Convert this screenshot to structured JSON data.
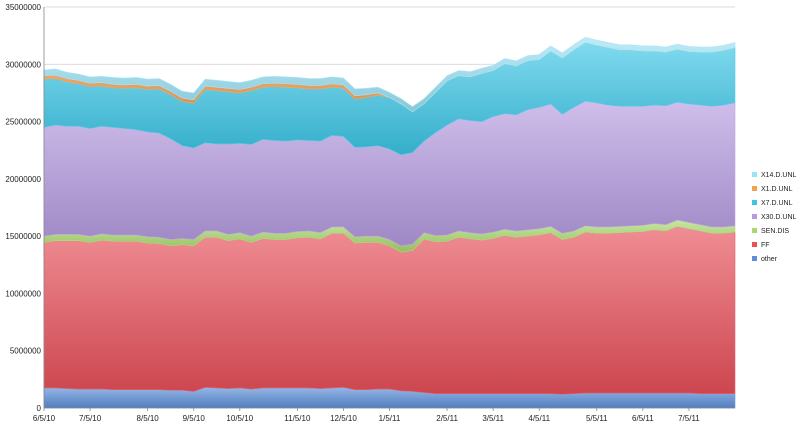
{
  "chart_data": {
    "type": "area",
    "stacked": true,
    "grid": true,
    "legend_position": "right",
    "title": "",
    "xlabel": "",
    "ylabel": "",
    "ylim": [
      0,
      35000000
    ],
    "y_ticks": [
      0,
      5000000,
      10000000,
      15000000,
      20000000,
      25000000,
      30000000,
      35000000
    ],
    "y_tick_labels": [
      "0",
      "5000000",
      "10000000",
      "15000000",
      "20000000",
      "25000000",
      "30000000",
      "35000000"
    ],
    "x_ticks": [
      {
        "index": 0,
        "label": "6/5/10"
      },
      {
        "index": 4,
        "label": "7/5/10"
      },
      {
        "index": 9,
        "label": "8/5/10"
      },
      {
        "index": 13,
        "label": "9/5/10"
      },
      {
        "index": 17,
        "label": "10/5/10"
      },
      {
        "index": 22,
        "label": "11/5/10"
      },
      {
        "index": 26,
        "label": "12/5/10"
      },
      {
        "index": 30,
        "label": "1/5/11"
      },
      {
        "index": 35,
        "label": "2/5/11"
      },
      {
        "index": 39,
        "label": "3/5/11"
      },
      {
        "index": 43,
        "label": "4/5/11"
      },
      {
        "index": 48,
        "label": "5/5/11"
      },
      {
        "index": 52,
        "label": "6/5/11"
      },
      {
        "index": 56,
        "label": "7/5/11"
      }
    ],
    "series": [
      {
        "name": "other",
        "color": "#5b8fd9",
        "values": [
          1750000,
          1750000,
          1700000,
          1650000,
          1650000,
          1650000,
          1600000,
          1600000,
          1600000,
          1600000,
          1600000,
          1550000,
          1550000,
          1450000,
          1800000,
          1750000,
          1700000,
          1750000,
          1650000,
          1750000,
          1750000,
          1750000,
          1750000,
          1750000,
          1700000,
          1750000,
          1800000,
          1600000,
          1600000,
          1650000,
          1650000,
          1500000,
          1450000,
          1350000,
          1250000,
          1250000,
          1250000,
          1250000,
          1250000,
          1250000,
          1250000,
          1250000,
          1250000,
          1250000,
          1250000,
          1200000,
          1250000,
          1300000,
          1300000,
          1300000,
          1300000,
          1300000,
          1300000,
          1300000,
          1300000,
          1300000,
          1300000,
          1250000,
          1250000,
          1250000,
          1250000
        ]
      },
      {
        "name": "FF",
        "color": "#e8505a",
        "values": [
          12700000,
          12850000,
          12900000,
          12950000,
          12800000,
          13000000,
          12950000,
          12950000,
          12950000,
          12800000,
          12750000,
          12600000,
          12700000,
          12700000,
          13100000,
          13150000,
          12900000,
          13000000,
          12800000,
          13050000,
          12950000,
          12950000,
          13100000,
          13150000,
          13050000,
          13500000,
          13450000,
          12800000,
          12850000,
          12800000,
          12500000,
          12100000,
          12300000,
          13400000,
          13250000,
          13300000,
          13650000,
          13500000,
          13400000,
          13550000,
          13800000,
          13650000,
          13750000,
          13850000,
          14050000,
          13500000,
          13650000,
          14050000,
          13950000,
          13950000,
          14000000,
          14050000,
          14100000,
          14250000,
          14150000,
          14550000,
          14350000,
          14200000,
          14000000,
          14000000,
          14100000
        ]
      },
      {
        "name": "SEN.DIS",
        "color": "#a9d86e",
        "values": [
          550000,
          550000,
          550000,
          550000,
          550000,
          550000,
          550000,
          550000,
          550000,
          550000,
          550000,
          550000,
          550000,
          550000,
          550000,
          550000,
          550000,
          550000,
          550000,
          550000,
          550000,
          550000,
          550000,
          550000,
          550000,
          550000,
          550000,
          550000,
          550000,
          550000,
          550000,
          550000,
          550000,
          550000,
          550000,
          550000,
          550000,
          550000,
          550000,
          550000,
          550000,
          550000,
          550000,
          550000,
          550000,
          550000,
          550000,
          550000,
          550000,
          550000,
          550000,
          550000,
          550000,
          550000,
          550000,
          550000,
          550000,
          550000,
          550000,
          550000,
          550000
        ]
      },
      {
        "name": "X30.D.UNL",
        "color": "#b59be0",
        "values": [
          9500000,
          9550000,
          9450000,
          9450000,
          9400000,
          9400000,
          9400000,
          9300000,
          9200000,
          9150000,
          9100000,
          8800000,
          8100000,
          8000000,
          7700000,
          7600000,
          7900000,
          7800000,
          8000000,
          8100000,
          8100000,
          8050000,
          8000000,
          7900000,
          8000000,
          8000000,
          7900000,
          7800000,
          7800000,
          7900000,
          7900000,
          7950000,
          8000000,
          8000000,
          9000000,
          9600000,
          9800000,
          9800000,
          9800000,
          10100000,
          10100000,
          10150000,
          10500000,
          10600000,
          10700000,
          10400000,
          10800000,
          10900000,
          10850000,
          10650000,
          10500000,
          10450000,
          10400000,
          10350000,
          10400000,
          10300000,
          10350000,
          10450000,
          10550000,
          10650000,
          10750000
        ]
      },
      {
        "name": "X7.D.UNL",
        "color": "#3bc6e6",
        "values": [
          4200000,
          4050000,
          3850000,
          3700000,
          3650000,
          3500000,
          3450000,
          3500000,
          3650000,
          3700000,
          3850000,
          3850000,
          3850000,
          3900000,
          4650000,
          4650000,
          4550000,
          4400000,
          4700000,
          4550000,
          4700000,
          4700000,
          4550000,
          4500000,
          4550000,
          4200000,
          4200000,
          4200000,
          4300000,
          4400000,
          4500000,
          4450000,
          3550000,
          3250000,
          3500000,
          3850000,
          3750000,
          3800000,
          4200000,
          4000000,
          4350000,
          4250000,
          4250000,
          4150000,
          4600000,
          4900000,
          5000000,
          5100000,
          5000000,
          5000000,
          4900000,
          4900000,
          4800000,
          4700000,
          4650000,
          4600000,
          4550000,
          4600000,
          4700000,
          4750000,
          4800000
        ]
      },
      {
        "name": "X1.D.UNL",
        "color": "#f2a154",
        "values": [
          300000,
          300000,
          300000,
          300000,
          300000,
          300000,
          300000,
          300000,
          300000,
          300000,
          300000,
          300000,
          300000,
          300000,
          300000,
          300000,
          300000,
          300000,
          300000,
          300000,
          300000,
          300000,
          300000,
          300000,
          300000,
          300000,
          300000,
          300000,
          250000,
          200000,
          0,
          0,
          0,
          0,
          0,
          0,
          0,
          0,
          0,
          0,
          0,
          0,
          0,
          0,
          0,
          0,
          0,
          0,
          0,
          0,
          0,
          0,
          0,
          0,
          0,
          0,
          0,
          0,
          0,
          0,
          0
        ]
      },
      {
        "name": "X14.D.UNL",
        "color": "#9be2f5",
        "values": [
          500000,
          550000,
          550000,
          550000,
          550000,
          550000,
          600000,
          600000,
          600000,
          600000,
          600000,
          600000,
          600000,
          600000,
          600000,
          600000,
          600000,
          600000,
          600000,
          600000,
          600000,
          600000,
          600000,
          600000,
          600000,
          600000,
          600000,
          600000,
          550000,
          500000,
          450000,
          450000,
          450000,
          450000,
          450000,
          450000,
          450000,
          450000,
          450000,
          450000,
          450000,
          450000,
          450000,
          450000,
          450000,
          450000,
          450000,
          450000,
          450000,
          450000,
          450000,
          450000,
          450000,
          450000,
          450000,
          450000,
          450000,
          450000,
          450000,
          450000,
          450000
        ]
      }
    ]
  }
}
